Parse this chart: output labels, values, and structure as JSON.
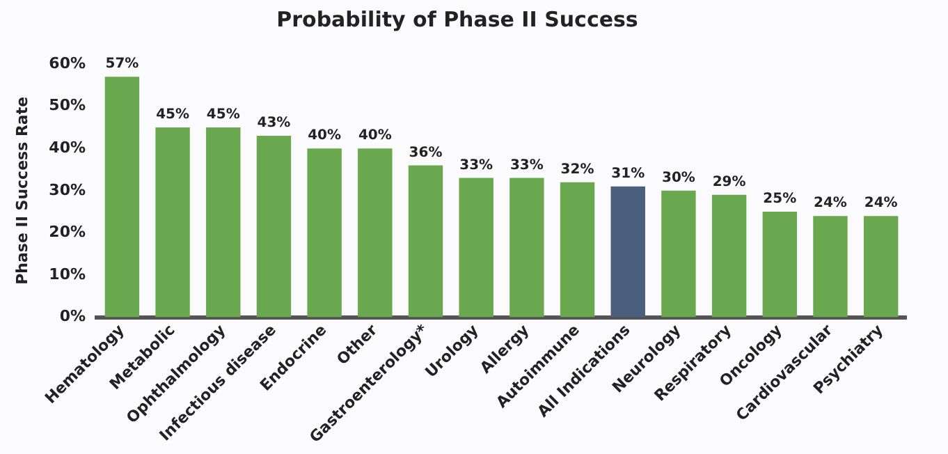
{
  "chart_data": {
    "type": "bar",
    "title": "Probability of Phase II Success",
    "ylabel": "Phase II Success Rate",
    "categories": [
      "Hematology",
      "Metabolic",
      "Ophthalmology",
      "Infectious disease",
      "Endocrine",
      "Other",
      "Gastroenterology*",
      "Urology",
      "Allergy",
      "Autoimmune",
      "All Indications",
      "Neurology",
      "Respiratory",
      "Oncology",
      "Cardiovascular",
      "Psychiatry"
    ],
    "values": [
      57,
      45,
      45,
      43,
      40,
      40,
      36,
      33,
      33,
      32,
      31,
      30,
      29,
      25,
      24,
      24
    ],
    "value_labels": [
      "57%",
      "45%",
      "45%",
      "43%",
      "40%",
      "40%",
      "36%",
      "33%",
      "33%",
      "32%",
      "31%",
      "30%",
      "29%",
      "25%",
      "24%",
      "24%"
    ],
    "colors": [
      "#6aa84f",
      "#6aa84f",
      "#6aa84f",
      "#6aa84f",
      "#6aa84f",
      "#6aa84f",
      "#6aa84f",
      "#6aa84f",
      "#6aa84f",
      "#6aa84f",
      "#4a5e7e",
      "#6aa84f",
      "#6aa84f",
      "#6aa84f",
      "#6aa84f",
      "#6aa84f"
    ],
    "ylim": [
      0,
      60
    ],
    "yticks": [
      {
        "value": 0,
        "label": "0%"
      },
      {
        "value": 10,
        "label": "10%"
      },
      {
        "value": 20,
        "label": "20%"
      },
      {
        "value": 30,
        "label": "30%"
      },
      {
        "value": 40,
        "label": "40%"
      },
      {
        "value": 50,
        "label": "50%"
      },
      {
        "value": 60,
        "label": "60%"
      }
    ],
    "grid": false,
    "legend": false
  }
}
